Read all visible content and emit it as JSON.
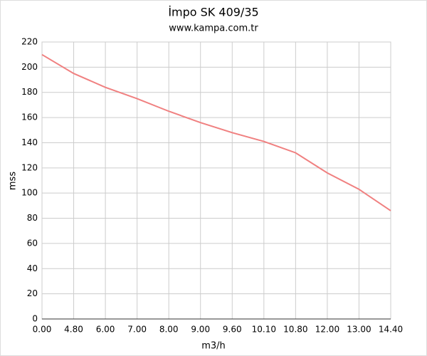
{
  "chart_data": {
    "type": "line",
    "title": "İmpo SK 409/35",
    "subtitle": "www.kampa.com.tr",
    "x_label": "m3/h",
    "y_label": "mss",
    "categories": [
      "0.00",
      "4.80",
      "6.00",
      "7.00",
      "8.00",
      "9.00",
      "9.60",
      "10.10",
      "10.80",
      "12.00",
      "13.00",
      "14.40"
    ],
    "series": [
      {
        "name": "mss",
        "color": "#f08080",
        "values": [
          210,
          195,
          184,
          175,
          165,
          156,
          148,
          141,
          132,
          116,
          103,
          86
        ]
      }
    ],
    "ylim": [
      0,
      220
    ],
    "yticks": [
      0,
      20,
      40,
      60,
      80,
      100,
      120,
      140,
      160,
      180,
      200,
      220
    ],
    "grid": true
  }
}
